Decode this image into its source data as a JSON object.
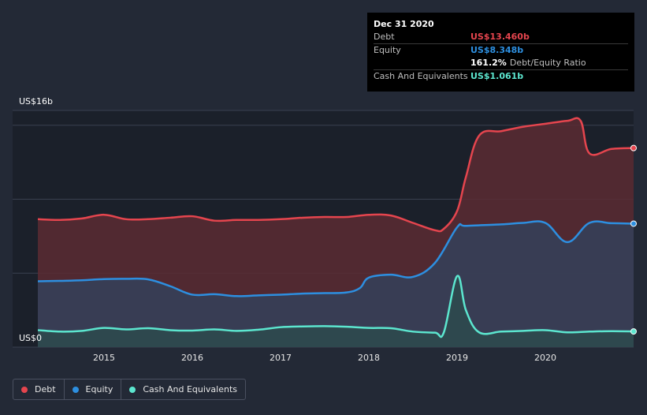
{
  "chart_data": {
    "type": "area",
    "yaxis": {
      "top_label": "US$16b",
      "bottom_label": "US$0",
      "ylim": [
        0,
        16
      ]
    },
    "xaxis": {
      "ticks": [
        "2015",
        "2016",
        "2017",
        "2018",
        "2019",
        "2020"
      ],
      "range": [
        2014.25,
        2021.0
      ]
    },
    "colors": {
      "debt": "#e5454e",
      "equity": "#2d8fe0",
      "cash": "#5ce6cf",
      "debt_fill": "#5a2b33",
      "equity_fill": "#34415a",
      "cash_fill": "#2d4a4e",
      "background": "#232936",
      "plot_background": "#1b202a",
      "grid": "#3a4050"
    },
    "series": [
      {
        "name": "Debt",
        "key": "debt",
        "x": [
          2014.25,
          2014.5,
          2014.75,
          2015.0,
          2015.25,
          2015.5,
          2015.75,
          2016.0,
          2016.25,
          2016.5,
          2016.75,
          2017.0,
          2017.25,
          2017.5,
          2017.75,
          2018.0,
          2018.25,
          2018.5,
          2018.75,
          2018.85,
          2019.0,
          2019.1,
          2019.25,
          2019.5,
          2019.75,
          2020.0,
          2020.25,
          2020.4,
          2020.5,
          2020.75,
          2021.0
        ],
        "values": [
          8.65,
          8.6,
          8.7,
          8.95,
          8.65,
          8.65,
          8.75,
          8.85,
          8.55,
          8.6,
          8.6,
          8.65,
          8.75,
          8.8,
          8.8,
          8.95,
          8.9,
          8.4,
          7.9,
          8.0,
          9.2,
          11.5,
          14.3,
          14.6,
          14.9,
          15.1,
          15.3,
          15.3,
          13.1,
          13.4,
          13.46
        ]
      },
      {
        "name": "Equity",
        "key": "equity",
        "x": [
          2014.25,
          2014.5,
          2014.75,
          2015.0,
          2015.25,
          2015.5,
          2015.75,
          2016.0,
          2016.25,
          2016.5,
          2016.75,
          2017.0,
          2017.25,
          2017.5,
          2017.75,
          2017.9,
          2018.0,
          2018.25,
          2018.5,
          2018.75,
          2019.0,
          2019.1,
          2019.5,
          2019.75,
          2020.0,
          2020.25,
          2020.5,
          2020.75,
          2021.0
        ],
        "values": [
          4.45,
          4.48,
          4.52,
          4.6,
          4.62,
          4.58,
          4.12,
          3.55,
          3.58,
          3.45,
          3.5,
          3.55,
          3.62,
          3.65,
          3.7,
          4.0,
          4.7,
          4.9,
          4.75,
          5.7,
          8.1,
          8.2,
          8.3,
          8.4,
          8.4,
          7.1,
          8.4,
          8.38,
          8.348
        ]
      },
      {
        "name": "Cash And Equivalents",
        "key": "cash",
        "x": [
          2014.25,
          2014.5,
          2014.75,
          2015.0,
          2015.25,
          2015.5,
          2015.75,
          2016.0,
          2016.25,
          2016.5,
          2016.75,
          2017.0,
          2017.25,
          2017.5,
          2017.75,
          2018.0,
          2018.25,
          2018.5,
          2018.75,
          2018.85,
          2019.0,
          2019.1,
          2019.25,
          2019.5,
          2019.75,
          2020.0,
          2020.25,
          2020.5,
          2020.75,
          2021.0
        ],
        "values": [
          1.15,
          1.05,
          1.1,
          1.3,
          1.2,
          1.28,
          1.15,
          1.12,
          1.2,
          1.1,
          1.18,
          1.35,
          1.4,
          1.42,
          1.38,
          1.3,
          1.28,
          1.05,
          0.98,
          1.0,
          4.8,
          2.5,
          1.0,
          1.05,
          1.1,
          1.15,
          1.0,
          1.05,
          1.08,
          1.061
        ]
      }
    ],
    "tooltip": {
      "title": "Dec 31 2020",
      "rows": [
        {
          "name": "Debt",
          "value": "US$13.460b",
          "color": "#e5454e"
        },
        {
          "name": "Equity",
          "value": "US$8.348b",
          "color": "#2d8fe0"
        },
        {
          "name": "",
          "value": "161.2%",
          "suffix": "Debt/Equity Ratio",
          "color": "#ffffff"
        },
        {
          "name": "Cash And Equivalents",
          "value": "US$1.061b",
          "color": "#5ce6cf"
        }
      ]
    },
    "legend": [
      {
        "label": "Debt",
        "color": "#e5454e"
      },
      {
        "label": "Equity",
        "color": "#2d8fe0"
      },
      {
        "label": "Cash And Equivalents",
        "color": "#5ce6cf"
      }
    ],
    "grid": true,
    "legend_position": "bottom-left"
  }
}
